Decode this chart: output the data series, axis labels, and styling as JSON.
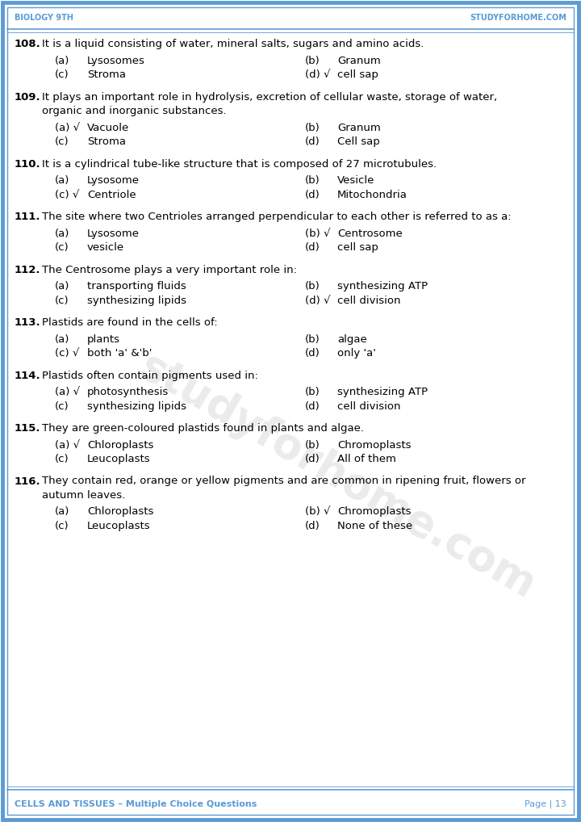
{
  "header_left": "Biology 9th",
  "header_right": "studyforhome.com",
  "footer_left": "CELLS AND TISSUES – Multiple Choice Questions",
  "footer_right": "Page | 13",
  "header_color": "#5b9bd5",
  "border_color": "#5b9bd5",
  "bg_color": "#ffffff",
  "text_color": "#000000",
  "watermark_text": "studyforhome.com",
  "questions": [
    {
      "num": "108.",
      "question": "It is a liquid consisting of water, mineral salts, sugars and amino acids.",
      "multiline": false,
      "options": [
        {
          "label": "(a)",
          "text": "Lysosomes",
          "correct": false
        },
        {
          "label": "(b)",
          "text": "Granum",
          "correct": false
        },
        {
          "label": "(c)",
          "text": "Stroma",
          "correct": false
        },
        {
          "label": "(d) √",
          "text": "cell sap",
          "correct": true
        }
      ]
    },
    {
      "num": "109.",
      "question": "It plays an important role in hydrolysis, excretion of cellular waste, storage of water,\norganic and inorganic substances.",
      "multiline": true,
      "options": [
        {
          "label": "(a) √",
          "text": "Vacuole",
          "correct": true
        },
        {
          "label": "(b)",
          "text": "Granum",
          "correct": false
        },
        {
          "label": "(c)",
          "text": "Stroma",
          "correct": false
        },
        {
          "label": "(d)",
          "text": "Cell sap",
          "correct": false
        }
      ]
    },
    {
      "num": "110.",
      "question": "It is a cylindrical tube-like structure that is composed of 27 microtubules.",
      "multiline": false,
      "options": [
        {
          "label": "(a)",
          "text": "Lysosome",
          "correct": false
        },
        {
          "label": "(b)",
          "text": "Vesicle",
          "correct": false
        },
        {
          "label": "(c) √",
          "text": "Centriole",
          "correct": true
        },
        {
          "label": "(d)",
          "text": "Mitochondria",
          "correct": false
        }
      ]
    },
    {
      "num": "111.",
      "question": "The site where two Centrioles arranged perpendicular to each other is referred to as a:",
      "multiline": false,
      "options": [
        {
          "label": "(a)",
          "text": "Lysosome",
          "correct": false
        },
        {
          "label": "(b) √",
          "text": "Centrosome",
          "correct": true
        },
        {
          "label": "(c)",
          "text": "vesicle",
          "correct": false
        },
        {
          "label": "(d)",
          "text": "cell sap",
          "correct": false
        }
      ]
    },
    {
      "num": "112.",
      "question": "The Centrosome plays a very important role in:",
      "multiline": false,
      "options": [
        {
          "label": "(a)",
          "text": "transporting fluids",
          "correct": false
        },
        {
          "label": "(b)",
          "text": "synthesizing ATP",
          "correct": false
        },
        {
          "label": "(c)",
          "text": "synthesizing lipids",
          "correct": false
        },
        {
          "label": "(d) √",
          "text": "cell division",
          "correct": true
        }
      ]
    },
    {
      "num": "113.",
      "question": "Plastids are found in the cells of:",
      "multiline": false,
      "options": [
        {
          "label": "(a)",
          "text": "plants",
          "correct": false
        },
        {
          "label": "(b)",
          "text": "algae",
          "correct": false
        },
        {
          "label": "(c) √",
          "text": "both 'a' &'b'",
          "correct": true
        },
        {
          "label": "(d)",
          "text": "only 'a'",
          "correct": false
        }
      ]
    },
    {
      "num": "114.",
      "question": "Plastids often contain pigments used in:",
      "multiline": false,
      "options": [
        {
          "label": "(a) √",
          "text": "photosynthesis",
          "correct": true
        },
        {
          "label": "(b)",
          "text": "synthesizing ATP",
          "correct": false
        },
        {
          "label": "(c)",
          "text": "synthesizing lipids",
          "correct": false
        },
        {
          "label": "(d)",
          "text": "cell division",
          "correct": false
        }
      ]
    },
    {
      "num": "115.",
      "question": "They are green-coloured plastids found in plants and algae.",
      "multiline": false,
      "options": [
        {
          "label": "(a) √",
          "text": "Chloroplasts",
          "correct": true
        },
        {
          "label": "(b)",
          "text": "Chromoplasts",
          "correct": false
        },
        {
          "label": "(c)",
          "text": "Leucoplasts",
          "correct": false
        },
        {
          "label": "(d)",
          "text": "All of them",
          "correct": false
        }
      ]
    },
    {
      "num": "116.",
      "question": "They contain red, orange or yellow pigments and are common in ripening fruit, flowers or\nautumn leaves.",
      "multiline": true,
      "options": [
        {
          "label": "(a)",
          "text": "Chloroplasts",
          "correct": false
        },
        {
          "label": "(b) √",
          "text": "Chromoplasts",
          "correct": true
        },
        {
          "label": "(c)",
          "text": "Leucoplasts",
          "correct": false
        },
        {
          "label": "(d)",
          "text": "None of these",
          "correct": false
        }
      ]
    }
  ]
}
